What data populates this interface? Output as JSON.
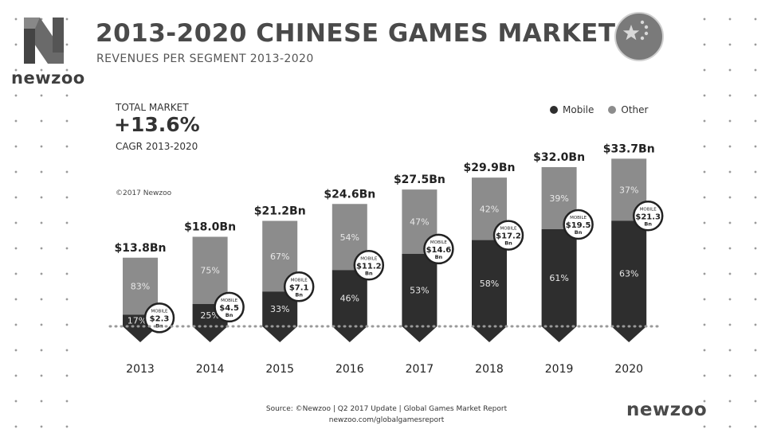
{
  "brand": {
    "name": "newzoo",
    "footer": "newzoo"
  },
  "header": {
    "title": "2013-2020 CHINESE GAMES MARKET",
    "subtitle": "REVENUES PER SEGMENT 2013-2020",
    "flag_icon": "china-flag-icon"
  },
  "kpi": {
    "label": "TOTAL MARKET",
    "value": "+13.6%",
    "sub": "CAGR 2013-2020"
  },
  "copyright": "©2017 Newzoo",
  "legend": [
    {
      "label": "Mobile",
      "color": "#2e2e2e"
    },
    {
      "label": "Other",
      "color": "#8c8c8c"
    }
  ],
  "footer": {
    "source": "Source: ©Newzoo | Q2 2017 Update | Global Games Market Report",
    "url": "newzoo.com/globalgamesreport"
  },
  "colors": {
    "mobile": "#2e2e2e",
    "other": "#8c8c8c",
    "text": "#333333"
  },
  "chart_data": {
    "type": "bar",
    "stacked": true,
    "categories": [
      "2013",
      "2014",
      "2015",
      "2016",
      "2017",
      "2018",
      "2019",
      "2020"
    ],
    "totals": [
      13.8,
      18.0,
      21.2,
      24.6,
      27.5,
      29.9,
      32.0,
      33.7
    ],
    "total_labels": [
      "$13.8Bn",
      "$18.0Bn",
      "$21.2Bn",
      "$24.6Bn",
      "$27.5Bn",
      "$29.9Bn",
      "$32.0Bn",
      "$33.7Bn"
    ],
    "series": [
      {
        "name": "Mobile",
        "percent": [
          17,
          25,
          33,
          46,
          53,
          58,
          61,
          63
        ],
        "percent_labels": [
          "17%",
          "25%",
          "33%",
          "46%",
          "53%",
          "58%",
          "61%",
          "63%"
        ],
        "values": [
          2.3,
          4.5,
          7.1,
          11.2,
          14.6,
          17.2,
          19.5,
          21.3
        ],
        "badge_top": "MOBILE",
        "badge_values": [
          "$2.3",
          "$4.5",
          "$7.1",
          "$11.2",
          "$14.6",
          "$17.2",
          "$19.5",
          "$21.3"
        ],
        "badge_unit": "Bn"
      },
      {
        "name": "Other",
        "percent": [
          83,
          75,
          67,
          54,
          47,
          42,
          39,
          37
        ],
        "percent_labels": [
          "83%",
          "75%",
          "67%",
          "54%",
          "47%",
          "42%",
          "39%",
          "37%"
        ]
      }
    ],
    "ylim": [
      0,
      36
    ],
    "grid": false,
    "legend_position": "top-right"
  }
}
